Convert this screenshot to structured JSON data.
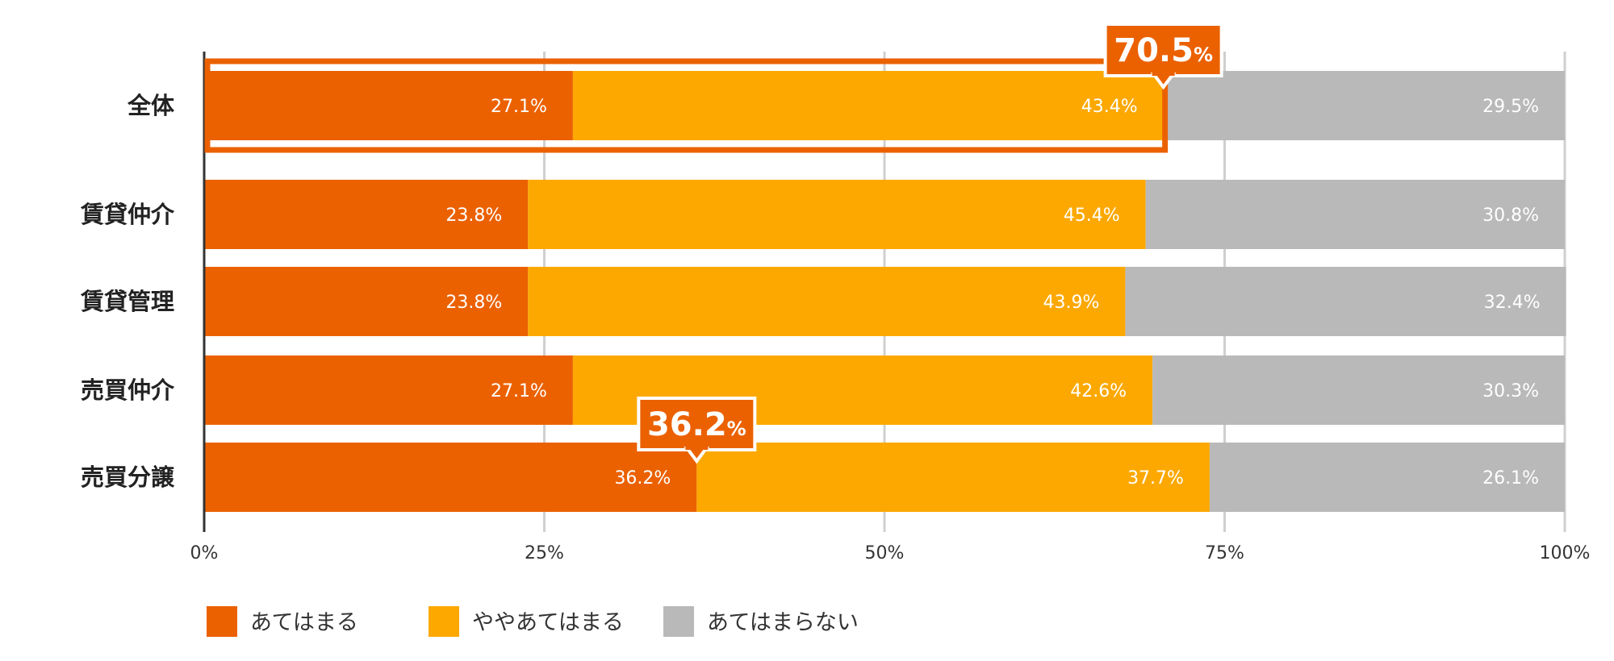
{
  "chart_data": {
    "type": "bar",
    "orientation": "horizontal",
    "stacked": true,
    "categories": [
      "全体",
      "賃貸仲介",
      "賃貸管理",
      "売買仲介",
      "売買分譲"
    ],
    "series": [
      {
        "name": "あてはまる",
        "color": "#EB6100",
        "values": [
          27.1,
          23.8,
          23.8,
          27.1,
          36.2
        ]
      },
      {
        "name": "ややあてはまる",
        "color": "#FCA800",
        "values": [
          43.4,
          45.4,
          43.9,
          42.6,
          37.7
        ]
      },
      {
        "name": "あてはまらない",
        "color": "#B9B9B9",
        "values": [
          29.5,
          30.8,
          32.4,
          30.3,
          26.1
        ]
      }
    ],
    "value_suffix": "%",
    "xlim": [
      0,
      100
    ],
    "xticks": [
      "0%",
      "25%",
      "50%",
      "75%",
      "100%"
    ],
    "grid": true,
    "legend_position": "bottom-left",
    "callouts": [
      {
        "category_index": 0,
        "value": "70.5",
        "unit": "%"
      },
      {
        "category_index": 4,
        "value": "36.2",
        "unit": "%"
      }
    ],
    "highlight_color": "#EB6100"
  }
}
